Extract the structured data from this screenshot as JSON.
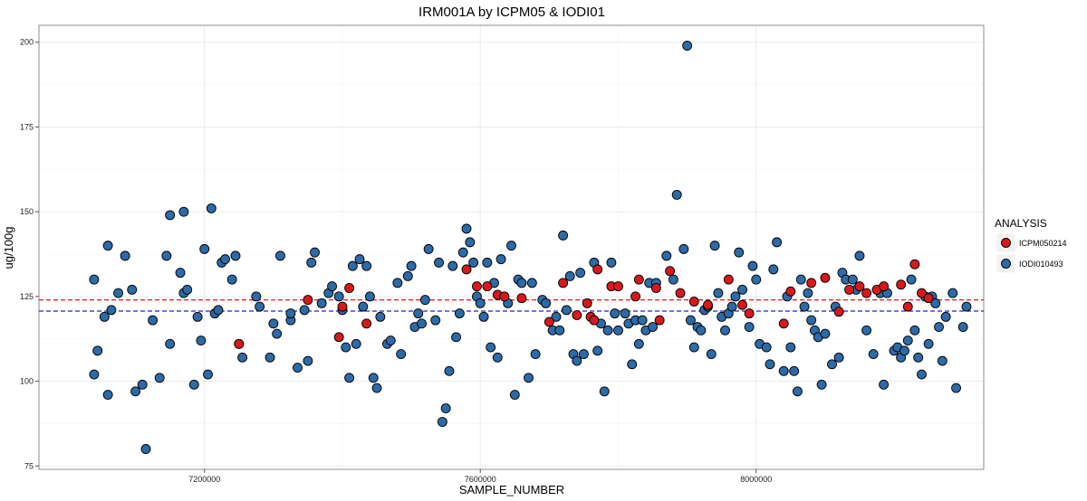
{
  "chart_data": {
    "type": "scatter",
    "title": "IRM001A by ICPM05 & IODI01",
    "xlabel": "SAMPLE_NUMBER",
    "ylabel": "ug/100g",
    "xlim": [
      6960000,
      8330000
    ],
    "ylim": [
      74,
      205
    ],
    "x_ticks": [
      7200000,
      7600000,
      8000000
    ],
    "x_tick_labels": [
      "7200000",
      "7600000",
      "8000000"
    ],
    "y_ticks": [
      75,
      100,
      125,
      150,
      175,
      200
    ],
    "y_tick_labels": [
      "75",
      "100",
      "125",
      "150",
      "175",
      "200"
    ],
    "grid": true,
    "legend": {
      "title": "ANALYSIS",
      "position": "right"
    },
    "reference_lines": [
      {
        "y": 124,
        "color": "#e41a1c",
        "style": "dashed"
      },
      {
        "y": 120.7,
        "color": "#2222cc",
        "style": "dashed"
      }
    ],
    "series": [
      {
        "name": "ICPM050214",
        "color": "#d7191c",
        "points": [
          [
            7250000,
            111
          ],
          [
            7350000,
            124
          ],
          [
            7395000,
            113
          ],
          [
            7400000,
            122
          ],
          [
            7410000,
            127.5
          ],
          [
            7435000,
            117
          ],
          [
            7580000,
            133
          ],
          [
            7595000,
            128
          ],
          [
            7610000,
            128
          ],
          [
            7625000,
            125.5
          ],
          [
            7635000,
            125
          ],
          [
            7660000,
            124.5
          ],
          [
            7700000,
            117.5
          ],
          [
            7720000,
            129
          ],
          [
            7740000,
            119.5
          ],
          [
            7755000,
            123
          ],
          [
            7760000,
            119
          ],
          [
            7765000,
            118
          ],
          [
            7770000,
            133
          ],
          [
            7790000,
            128
          ],
          [
            7800000,
            128
          ],
          [
            7825000,
            125
          ],
          [
            7830000,
            130
          ],
          [
            7855000,
            127.5
          ],
          [
            7860000,
            118
          ],
          [
            7875000,
            132.5
          ],
          [
            7890000,
            126
          ],
          [
            7910000,
            123.5
          ],
          [
            7930000,
            122.5
          ],
          [
            7960000,
            130
          ],
          [
            7980000,
            122.5
          ],
          [
            7990000,
            120
          ],
          [
            8040000,
            117
          ],
          [
            8050000,
            126.5
          ],
          [
            8080000,
            129
          ],
          [
            8100000,
            130.5
          ],
          [
            8120000,
            120.5
          ],
          [
            8135000,
            127
          ],
          [
            8150000,
            128
          ],
          [
            8160000,
            126
          ],
          [
            8175000,
            127
          ],
          [
            8185000,
            128
          ],
          [
            8210000,
            128.5
          ],
          [
            8220000,
            122
          ],
          [
            8230000,
            134.5
          ],
          [
            8240000,
            126
          ],
          [
            8250000,
            124.5
          ]
        ]
      },
      {
        "name": "IODI010493",
        "color": "#2c6aa8",
        "points": [
          [
            7040000,
            130
          ],
          [
            7040000,
            102
          ],
          [
            7045000,
            109
          ],
          [
            7055000,
            119
          ],
          [
            7060000,
            140
          ],
          [
            7060000,
            96
          ],
          [
            7065000,
            121
          ],
          [
            7075000,
            126
          ],
          [
            7085000,
            137
          ],
          [
            7095000,
            127
          ],
          [
            7100000,
            97
          ],
          [
            7110000,
            99
          ],
          [
            7115000,
            80
          ],
          [
            7125000,
            118
          ],
          [
            7135000,
            101
          ],
          [
            7145000,
            137
          ],
          [
            7150000,
            149
          ],
          [
            7150000,
            111
          ],
          [
            7165000,
            132
          ],
          [
            7170000,
            126
          ],
          [
            7170000,
            150
          ],
          [
            7175000,
            127
          ],
          [
            7185000,
            99
          ],
          [
            7190000,
            119
          ],
          [
            7195000,
            112
          ],
          [
            7200000,
            139
          ],
          [
            7205000,
            102
          ],
          [
            7210000,
            151
          ],
          [
            7215000,
            120
          ],
          [
            7220000,
            121
          ],
          [
            7225000,
            135
          ],
          [
            7230000,
            136
          ],
          [
            7240000,
            130
          ],
          [
            7245000,
            137
          ],
          [
            7250000,
            111
          ],
          [
            7255000,
            107
          ],
          [
            7275000,
            125
          ],
          [
            7280000,
            122
          ],
          [
            7295000,
            107
          ],
          [
            7300000,
            117
          ],
          [
            7305000,
            114
          ],
          [
            7310000,
            137
          ],
          [
            7325000,
            118
          ],
          [
            7325000,
            120
          ],
          [
            7335000,
            104
          ],
          [
            7345000,
            121
          ],
          [
            7350000,
            106
          ],
          [
            7355000,
            135
          ],
          [
            7360000,
            138
          ],
          [
            7370000,
            123
          ],
          [
            7380000,
            126
          ],
          [
            7385000,
            128
          ],
          [
            7395000,
            125
          ],
          [
            7400000,
            121
          ],
          [
            7405000,
            110
          ],
          [
            7410000,
            101
          ],
          [
            7415000,
            134
          ],
          [
            7420000,
            111
          ],
          [
            7425000,
            136
          ],
          [
            7430000,
            122
          ],
          [
            7435000,
            134
          ],
          [
            7440000,
            125
          ],
          [
            7445000,
            101
          ],
          [
            7450000,
            98
          ],
          [
            7455000,
            119
          ],
          [
            7465000,
            111
          ],
          [
            7470000,
            112
          ],
          [
            7480000,
            129
          ],
          [
            7485000,
            108
          ],
          [
            7495000,
            131
          ],
          [
            7500000,
            134
          ],
          [
            7505000,
            116
          ],
          [
            7510000,
            120
          ],
          [
            7515000,
            117
          ],
          [
            7520000,
            124
          ],
          [
            7525000,
            139
          ],
          [
            7535000,
            118
          ],
          [
            7540000,
            135
          ],
          [
            7545000,
            88
          ],
          [
            7550000,
            92
          ],
          [
            7555000,
            103
          ],
          [
            7560000,
            134
          ],
          [
            7565000,
            113
          ],
          [
            7570000,
            120
          ],
          [
            7575000,
            138
          ],
          [
            7580000,
            145
          ],
          [
            7585000,
            141
          ],
          [
            7590000,
            135
          ],
          [
            7595000,
            125
          ],
          [
            7600000,
            123
          ],
          [
            7605000,
            119
          ],
          [
            7610000,
            135
          ],
          [
            7615000,
            110
          ],
          [
            7620000,
            129
          ],
          [
            7625000,
            107
          ],
          [
            7630000,
            136
          ],
          [
            7640000,
            123
          ],
          [
            7645000,
            140
          ],
          [
            7650000,
            96
          ],
          [
            7655000,
            130
          ],
          [
            7660000,
            129
          ],
          [
            7670000,
            101
          ],
          [
            7675000,
            129
          ],
          [
            7680000,
            108
          ],
          [
            7690000,
            124
          ],
          [
            7695000,
            123
          ],
          [
            7705000,
            115
          ],
          [
            7710000,
            119
          ],
          [
            7715000,
            115
          ],
          [
            7720000,
            143
          ],
          [
            7725000,
            121
          ],
          [
            7730000,
            131
          ],
          [
            7735000,
            108
          ],
          [
            7740000,
            106
          ],
          [
            7745000,
            132
          ],
          [
            7750000,
            108
          ],
          [
            7765000,
            135
          ],
          [
            7770000,
            109
          ],
          [
            7775000,
            117
          ],
          [
            7780000,
            97
          ],
          [
            7785000,
            115
          ],
          [
            7790000,
            135
          ],
          [
            7795000,
            120
          ],
          [
            7800000,
            115
          ],
          [
            7810000,
            120
          ],
          [
            7815000,
            117
          ],
          [
            7820000,
            105
          ],
          [
            7825000,
            118
          ],
          [
            7830000,
            111
          ],
          [
            7835000,
            118
          ],
          [
            7840000,
            115
          ],
          [
            7845000,
            129
          ],
          [
            7850000,
            116
          ],
          [
            7855000,
            129
          ],
          [
            7870000,
            137
          ],
          [
            7880000,
            130
          ],
          [
            7885000,
            155
          ],
          [
            7895000,
            139
          ],
          [
            7900000,
            199
          ],
          [
            7905000,
            118
          ],
          [
            7910000,
            110
          ],
          [
            7915000,
            116
          ],
          [
            7920000,
            115
          ],
          [
            7925000,
            121
          ],
          [
            7930000,
            122
          ],
          [
            7935000,
            108
          ],
          [
            7940000,
            140
          ],
          [
            7945000,
            126
          ],
          [
            7950000,
            119
          ],
          [
            7955000,
            115
          ],
          [
            7960000,
            120
          ],
          [
            7965000,
            122
          ],
          [
            7970000,
            125
          ],
          [
            7975000,
            138
          ],
          [
            7980000,
            127
          ],
          [
            7990000,
            116
          ],
          [
            7995000,
            134
          ],
          [
            8000000,
            130
          ],
          [
            8005000,
            111
          ],
          [
            8015000,
            110
          ],
          [
            8020000,
            105
          ],
          [
            8025000,
            133
          ],
          [
            8030000,
            141
          ],
          [
            8040000,
            103
          ],
          [
            8045000,
            125
          ],
          [
            8050000,
            110
          ],
          [
            8055000,
            103
          ],
          [
            8060000,
            97
          ],
          [
            8065000,
            130
          ],
          [
            8070000,
            122
          ],
          [
            8075000,
            126
          ],
          [
            8080000,
            118
          ],
          [
            8085000,
            115
          ],
          [
            8090000,
            113
          ],
          [
            8095000,
            99
          ],
          [
            8100000,
            114
          ],
          [
            8110000,
            105
          ],
          [
            8115000,
            122
          ],
          [
            8120000,
            107
          ],
          [
            8125000,
            132
          ],
          [
            8130000,
            130
          ],
          [
            8140000,
            130
          ],
          [
            8145000,
            127
          ],
          [
            8150000,
            137
          ],
          [
            8160000,
            115
          ],
          [
            8170000,
            108
          ],
          [
            8180000,
            126
          ],
          [
            8185000,
            99
          ],
          [
            8190000,
            126
          ],
          [
            8200000,
            109
          ],
          [
            8205000,
            110
          ],
          [
            8210000,
            107
          ],
          [
            8215000,
            109
          ],
          [
            8220000,
            112
          ],
          [
            8225000,
            130
          ],
          [
            8230000,
            115
          ],
          [
            8235000,
            107
          ],
          [
            8240000,
            102
          ],
          [
            8245000,
            125
          ],
          [
            8250000,
            111
          ],
          [
            8255000,
            125
          ],
          [
            8260000,
            123
          ],
          [
            8265000,
            116
          ],
          [
            8270000,
            106
          ],
          [
            8275000,
            119
          ],
          [
            8285000,
            126
          ],
          [
            8290000,
            98
          ],
          [
            8300000,
            116
          ],
          [
            8305000,
            122
          ]
        ]
      }
    ]
  }
}
